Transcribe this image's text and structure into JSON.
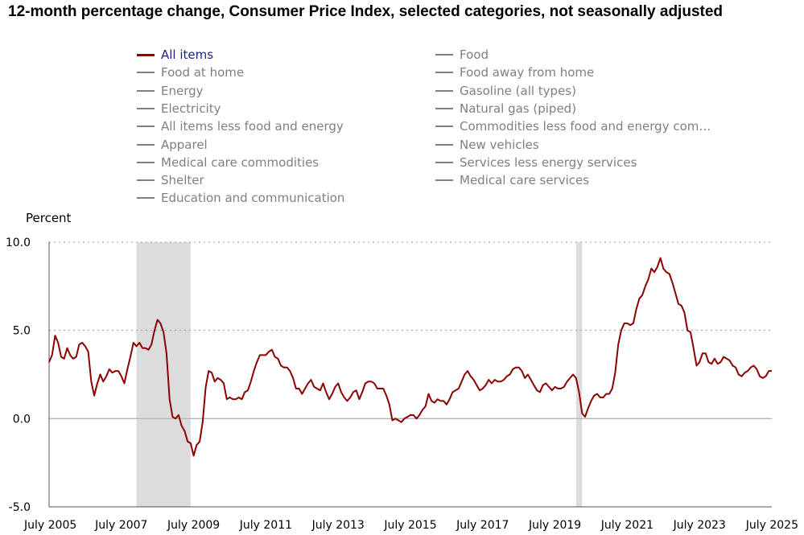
{
  "title": "12-month percentage change, Consumer Price Index, selected categories, not seasonally adjusted",
  "colors": {
    "highlight": "#8b0000",
    "muted": "#808080",
    "active_text": "#1a237e",
    "recession": "#dcdcdc"
  },
  "legend": {
    "left": [
      "All items",
      "Food at home",
      "Energy",
      "Electricity",
      "All items less food and energy",
      "Apparel",
      "Medical care commodities",
      "Shelter",
      "Education and communication"
    ],
    "right": [
      "Food",
      "Food away from home",
      "Gasoline (all types)",
      "Natural gas (piped)",
      "Commodities less food and energy com…",
      "New vehicles",
      "Services less energy services",
      "Medical care services"
    ]
  },
  "chart_data": {
    "type": "line",
    "title": "12-month percentage change, Consumer Price Index, selected categories, not seasonally adjusted",
    "ylabel": "Percent",
    "xlabel": "",
    "ylim": [
      -5.0,
      10.0
    ],
    "yticks": [
      "10.0",
      "5.0",
      "0.0",
      "-5.0"
    ],
    "yticks_values": [
      10,
      5,
      0,
      -5
    ],
    "x_start": "2005-07",
    "x_end": "2025-07",
    "xticks": [
      "July 2005",
      "July 2007",
      "July 2009",
      "July 2011",
      "July 2013",
      "July 2015",
      "July 2017",
      "July 2019",
      "July 2021",
      "July 2023",
      "July 2025"
    ],
    "recessions": [
      [
        "2007-12",
        "2009-06"
      ],
      [
        "2020-02",
        "2020-04"
      ]
    ],
    "grid": "horizontal dotted",
    "series": [
      {
        "name": "All items",
        "x": [
          "2005-07",
          "2005-08",
          "2005-09",
          "2005-10",
          "2005-11",
          "2005-12",
          "2006-01",
          "2006-02",
          "2006-03",
          "2006-04",
          "2006-05",
          "2006-06",
          "2006-07",
          "2006-08",
          "2006-09",
          "2006-10",
          "2006-11",
          "2006-12",
          "2007-01",
          "2007-02",
          "2007-03",
          "2007-04",
          "2007-05",
          "2007-06",
          "2007-07",
          "2007-08",
          "2007-09",
          "2007-10",
          "2007-11",
          "2007-12",
          "2008-01",
          "2008-02",
          "2008-03",
          "2008-04",
          "2008-05",
          "2008-06",
          "2008-07",
          "2008-08",
          "2008-09",
          "2008-10",
          "2008-11",
          "2008-12",
          "2009-01",
          "2009-02",
          "2009-03",
          "2009-04",
          "2009-05",
          "2009-06",
          "2009-07",
          "2009-08",
          "2009-09",
          "2009-10",
          "2009-11",
          "2009-12",
          "2010-01",
          "2010-02",
          "2010-03",
          "2010-04",
          "2010-05",
          "2010-06",
          "2010-07",
          "2010-08",
          "2010-09",
          "2010-10",
          "2010-11",
          "2010-12",
          "2011-01",
          "2011-02",
          "2011-03",
          "2011-04",
          "2011-05",
          "2011-06",
          "2011-07",
          "2011-08",
          "2011-09",
          "2011-10",
          "2011-11",
          "2011-12",
          "2012-01",
          "2012-02",
          "2012-03",
          "2012-04",
          "2012-05",
          "2012-06",
          "2012-07",
          "2012-08",
          "2012-09",
          "2012-10",
          "2012-11",
          "2012-12",
          "2013-01",
          "2013-02",
          "2013-03",
          "2013-04",
          "2013-05",
          "2013-06",
          "2013-07",
          "2013-08",
          "2013-09",
          "2013-10",
          "2013-11",
          "2013-12",
          "2014-01",
          "2014-02",
          "2014-03",
          "2014-04",
          "2014-05",
          "2014-06",
          "2014-07",
          "2014-08",
          "2014-09",
          "2014-10",
          "2014-11",
          "2014-12",
          "2015-01",
          "2015-02",
          "2015-03",
          "2015-04",
          "2015-05",
          "2015-06",
          "2015-07",
          "2015-08",
          "2015-09",
          "2015-10",
          "2015-11",
          "2015-12",
          "2016-01",
          "2016-02",
          "2016-03",
          "2016-04",
          "2016-05",
          "2016-06",
          "2016-07",
          "2016-08",
          "2016-09",
          "2016-10",
          "2016-11",
          "2016-12",
          "2017-01",
          "2017-02",
          "2017-03",
          "2017-04",
          "2017-05",
          "2017-06",
          "2017-07",
          "2017-08",
          "2017-09",
          "2017-10",
          "2017-11",
          "2017-12",
          "2018-01",
          "2018-02",
          "2018-03",
          "2018-04",
          "2018-05",
          "2018-06",
          "2018-07",
          "2018-08",
          "2018-09",
          "2018-10",
          "2018-11",
          "2018-12",
          "2019-01",
          "2019-02",
          "2019-03",
          "2019-04",
          "2019-05",
          "2019-06",
          "2019-07",
          "2019-08",
          "2019-09",
          "2019-10",
          "2019-11",
          "2019-12",
          "2020-01",
          "2020-02",
          "2020-03",
          "2020-04",
          "2020-05",
          "2020-06",
          "2020-07",
          "2020-08",
          "2020-09",
          "2020-10",
          "2020-11",
          "2020-12",
          "2021-01",
          "2021-02",
          "2021-03",
          "2021-04",
          "2021-05",
          "2021-06",
          "2021-07",
          "2021-08",
          "2021-09",
          "2021-10",
          "2021-11",
          "2021-12",
          "2022-01",
          "2022-02",
          "2022-03",
          "2022-04",
          "2022-05",
          "2022-06",
          "2022-07",
          "2022-08",
          "2022-09",
          "2022-10",
          "2022-11",
          "2022-12",
          "2023-01",
          "2023-02",
          "2023-03",
          "2023-04",
          "2023-05",
          "2023-06",
          "2023-07",
          "2023-08",
          "2023-09",
          "2023-10",
          "2023-11",
          "2023-12",
          "2024-01",
          "2024-02",
          "2024-03",
          "2024-04",
          "2024-05",
          "2024-06",
          "2024-07",
          "2024-08",
          "2024-09",
          "2024-10",
          "2024-11",
          "2024-12",
          "2025-01",
          "2025-02",
          "2025-03",
          "2025-04",
          "2025-05",
          "2025-06",
          "2025-07"
        ],
        "values": [
          3.2,
          3.6,
          4.7,
          4.3,
          3.5,
          3.4,
          4.0,
          3.6,
          3.4,
          3.5,
          4.2,
          4.3,
          4.1,
          3.8,
          2.1,
          1.3,
          2.0,
          2.5,
          2.1,
          2.4,
          2.8,
          2.6,
          2.7,
          2.7,
          2.4,
          2.0,
          2.8,
          3.5,
          4.3,
          4.1,
          4.3,
          4.0,
          4.0,
          3.9,
          4.2,
          5.0,
          5.6,
          5.4,
          4.9,
          3.7,
          1.1,
          0.1,
          0.0,
          0.2,
          -0.4,
          -0.7,
          -1.3,
          -1.4,
          -2.1,
          -1.5,
          -1.3,
          -0.2,
          1.8,
          2.7,
          2.6,
          2.1,
          2.3,
          2.2,
          2.0,
          1.1,
          1.2,
          1.1,
          1.1,
          1.2,
          1.1,
          1.5,
          1.6,
          2.1,
          2.7,
          3.2,
          3.6,
          3.6,
          3.6,
          3.8,
          3.9,
          3.5,
          3.4,
          3.0,
          2.9,
          2.9,
          2.7,
          2.3,
          1.7,
          1.7,
          1.4,
          1.7,
          2.0,
          2.2,
          1.8,
          1.7,
          1.6,
          2.0,
          1.5,
          1.1,
          1.4,
          1.8,
          2.0,
          1.5,
          1.2,
          1.0,
          1.2,
          1.5,
          1.6,
          1.1,
          1.5,
          2.0,
          2.1,
          2.1,
          2.0,
          1.7,
          1.7,
          1.7,
          1.3,
          0.8,
          -0.1,
          0.0,
          -0.1,
          -0.2,
          0.0,
          0.1,
          0.2,
          0.2,
          0.0,
          0.2,
          0.5,
          0.7,
          1.4,
          1.0,
          0.9,
          1.1,
          1.0,
          1.0,
          0.8,
          1.1,
          1.5,
          1.6,
          1.7,
          2.1,
          2.5,
          2.7,
          2.4,
          2.2,
          1.9,
          1.6,
          1.7,
          1.9,
          2.2,
          2.0,
          2.2,
          2.1,
          2.1,
          2.2,
          2.4,
          2.5,
          2.8,
          2.9,
          2.9,
          2.7,
          2.3,
          2.5,
          2.2,
          1.9,
          1.6,
          1.5,
          1.9,
          2.0,
          1.8,
          1.6,
          1.8,
          1.7,
          1.7,
          1.8,
          2.1,
          2.3,
          2.5,
          2.3,
          1.5,
          0.3,
          0.1,
          0.6,
          1.0,
          1.3,
          1.4,
          1.2,
          1.2,
          1.4,
          1.4,
          1.7,
          2.6,
          4.2,
          5.0,
          5.4,
          5.4,
          5.3,
          5.4,
          6.2,
          6.8,
          7.0,
          7.5,
          7.9,
          8.5,
          8.3,
          8.6,
          9.1,
          8.5,
          8.3,
          8.2,
          7.7,
          7.1,
          6.5,
          6.4,
          6.0,
          5.0,
          4.9,
          4.0,
          3.0,
          3.2,
          3.7,
          3.7,
          3.2,
          3.1,
          3.4,
          3.1,
          3.2,
          3.5,
          3.4,
          3.3,
          3.0,
          2.9,
          2.5,
          2.4,
          2.6,
          2.7,
          2.9,
          3.0,
          2.8,
          2.4,
          2.3,
          2.4,
          2.7,
          2.7
        ]
      }
    ]
  }
}
